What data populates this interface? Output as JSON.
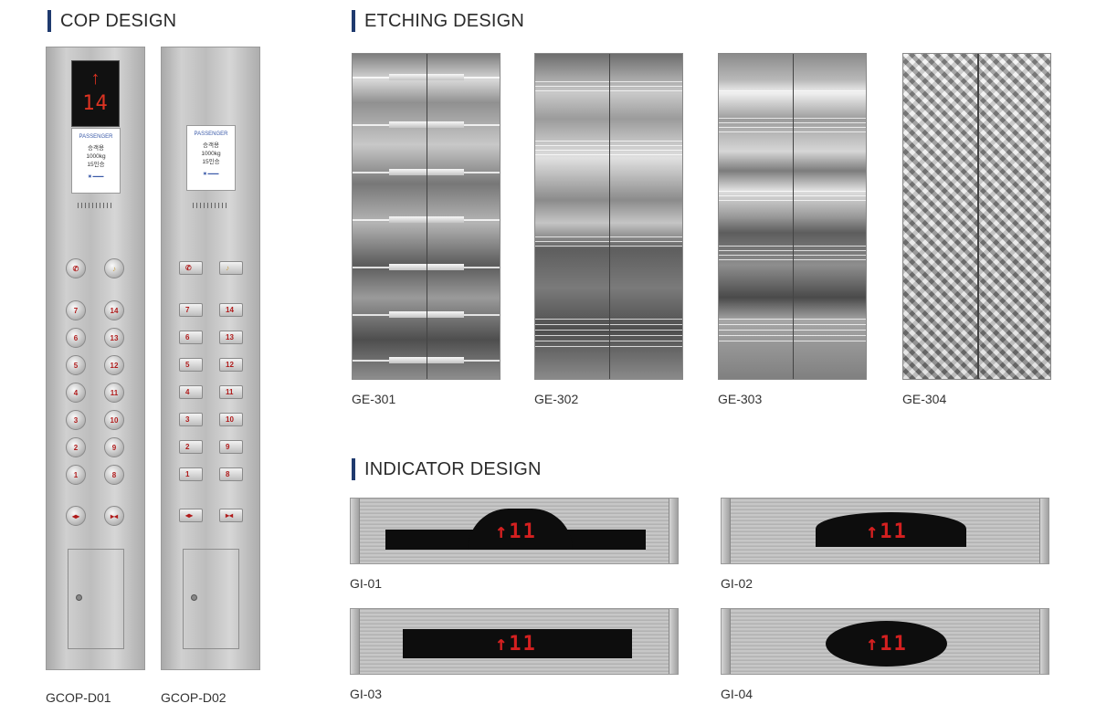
{
  "sections": {
    "cop": "COP DESIGN",
    "etching": "ETCHING DESIGN",
    "indicator": "INDICATOR DESIGN"
  },
  "cop_panels": [
    {
      "code": "GCOP-D01",
      "display": {
        "arrow": "↑",
        "floor": "14"
      },
      "plate": {
        "title": "PASSENGER",
        "lines": [
          "승객용",
          "1000kg",
          "15인승"
        ]
      },
      "button_style": "round"
    },
    {
      "code": "GCOP-D02",
      "plate": {
        "title": "PASSENGER",
        "lines": [
          "승객용",
          "1000kg",
          "15인승"
        ]
      },
      "button_style": "square"
    }
  ],
  "floor_buttons": {
    "left": [
      "7",
      "6",
      "5",
      "4",
      "3",
      "2",
      "1"
    ],
    "right": [
      "14",
      "13",
      "12",
      "11",
      "10",
      "9",
      "8"
    ]
  },
  "door_buttons": {
    "open": "◂▸",
    "close": "▸◂"
  },
  "etching_designs": [
    "GE-301",
    "GE-302",
    "GE-303",
    "GE-304"
  ],
  "indicators": [
    {
      "code": "GI-01",
      "readout": "↑11"
    },
    {
      "code": "GI-02",
      "readout": "↑11"
    },
    {
      "code": "GI-03",
      "readout": "↑11"
    },
    {
      "code": "GI-04",
      "readout": "↑11"
    }
  ],
  "colors": {
    "accent": "#1f3a6e",
    "led": "#d42020",
    "steel": "#bdbdbd"
  }
}
